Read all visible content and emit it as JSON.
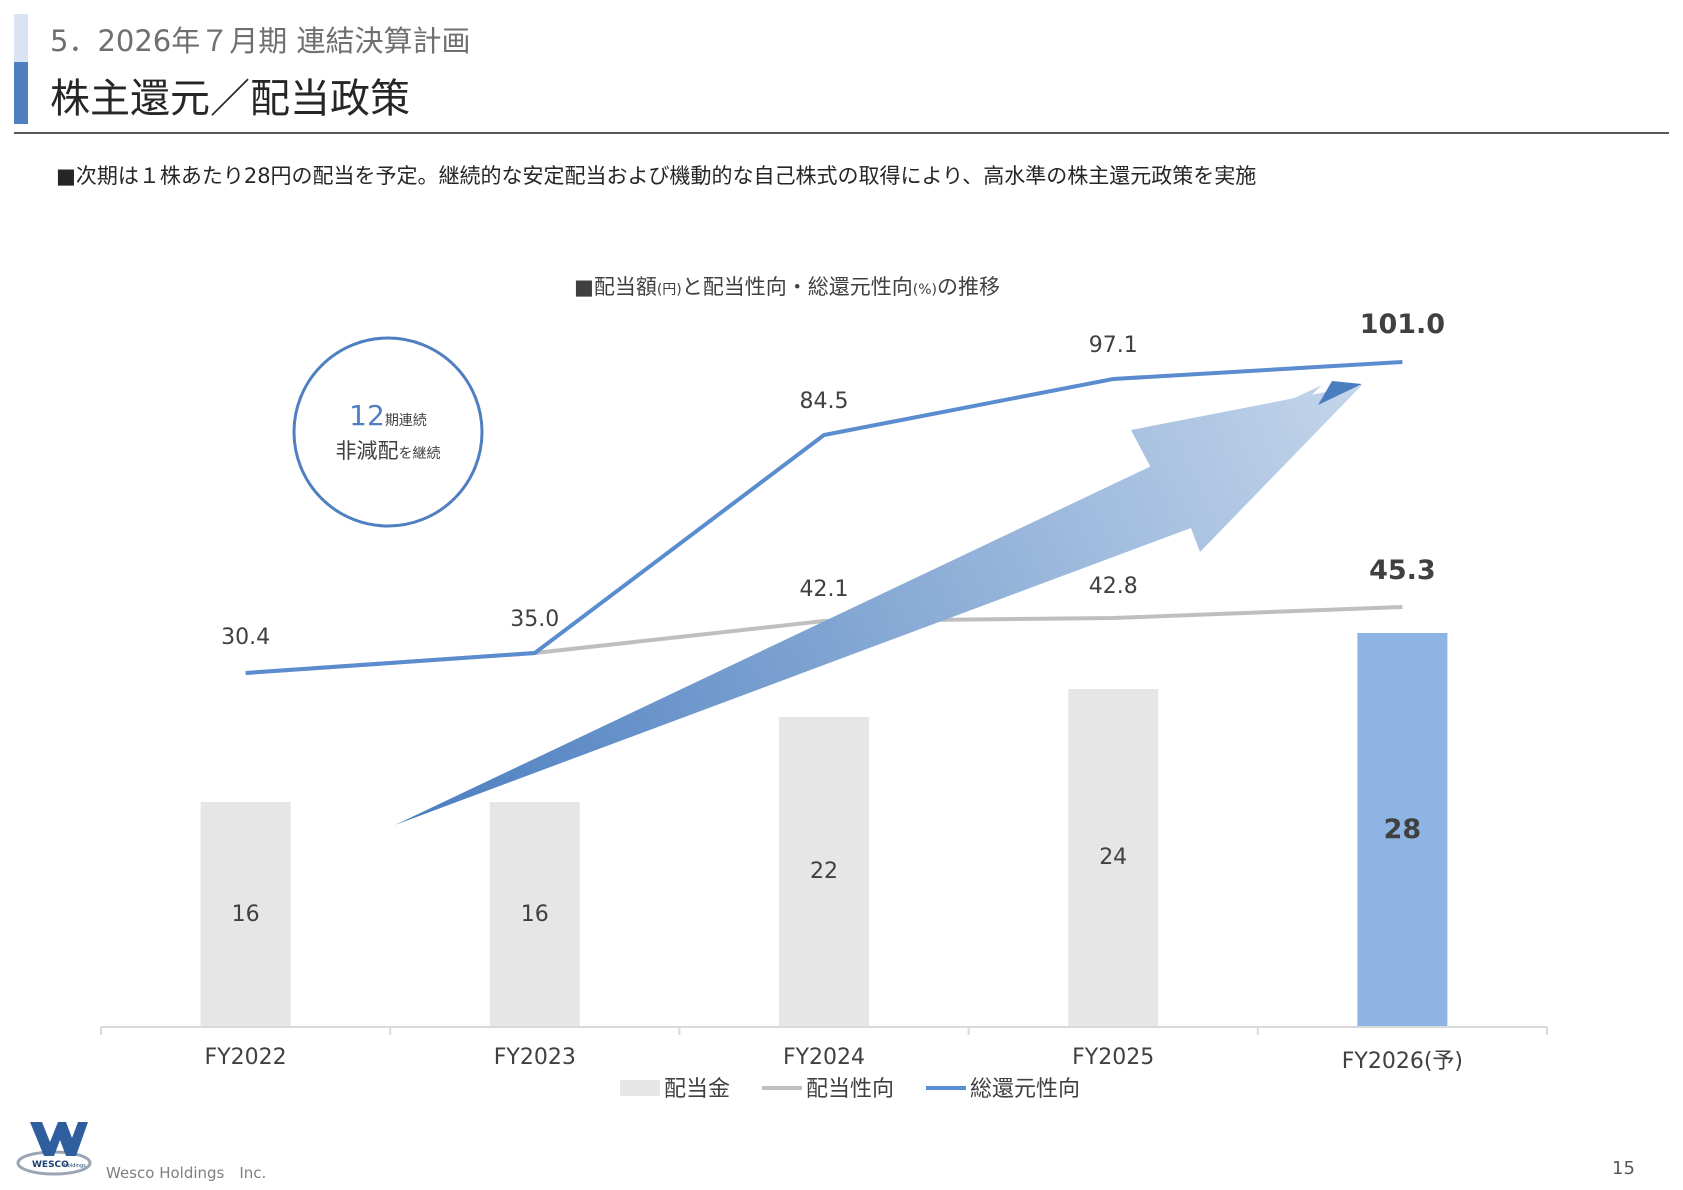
{
  "header": {
    "section": "5．2026年７月期 連結決算計画",
    "title": "株主還元／配当政策"
  },
  "lead": "■次期は１株あたり28円の配当を予定。継続的な安定配当および機動的な自己株式の取得により、高水準の株主還元政策を実施",
  "chart_data": {
    "type": "bar",
    "title_parts": [
      "■配当額",
      "(円)",
      "と配当性向・総還元性向",
      "(%)",
      "の推移"
    ],
    "categories": [
      "FY2022",
      "FY2023",
      "FY2024",
      "FY2025",
      "FY2026(予)"
    ],
    "bar_series": {
      "name": "配当金",
      "values": [
        16,
        16,
        22,
        24,
        28
      ],
      "labels": [
        "16",
        "16",
        "22",
        "24",
        "28"
      ],
      "colors": [
        "#e6e6e6",
        "#e6e6e6",
        "#e6e6e6",
        "#e6e6e6",
        "#8eb4e3"
      ]
    },
    "line_series": [
      {
        "name": "配当性向",
        "values": [
          30.4,
          35.0,
          42.1,
          42.8,
          45.3
        ],
        "labels": [
          "30.4",
          "35.0",
          "42.1",
          "42.8",
          "45.3"
        ],
        "color": "#bfbfbf"
      },
      {
        "name": "総還元性向",
        "values": [
          30.4,
          35.0,
          84.5,
          97.1,
          101.0
        ],
        "labels": [
          "",
          "",
          "84.5",
          "97.1",
          "101.0"
        ],
        "color": "#5b8ccf"
      }
    ],
    "legend_position": "bottom",
    "badge": {
      "number": "12",
      "suffix": "期連続",
      "main": "非減配",
      "tail": "を継続"
    },
    "colors": {
      "accent": "#4f7fc0",
      "bar_forecast": "#8eb4e3",
      "bar": "#e6e6e6",
      "axis": "#d9d9d9"
    }
  },
  "footer": {
    "company": "Wesco Holdings　Inc.",
    "page": "15",
    "logo_text": "WESCO",
    "logo_sub": "Holdings"
  }
}
